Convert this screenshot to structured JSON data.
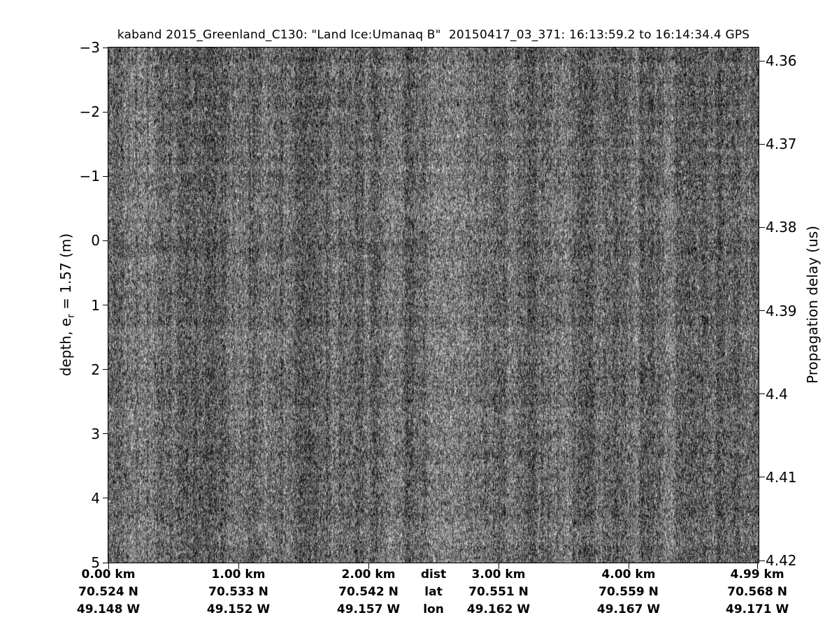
{
  "title": "kaband 2015_Greenland_C130: \"Land Ice:Umanaq B\"  20150417_03_371: 16:13:59.2 to 16:14:34.4 GPS",
  "left_axis": {
    "label_pre": "depth, e",
    "label_sub": "r",
    "label_post": " = 1.57 (m)",
    "ticks": [
      "−3",
      "−2",
      "−1",
      "0",
      "1",
      "2",
      "3",
      "4",
      "5"
    ]
  },
  "right_axis": {
    "label": "Propagation delay (us)",
    "ticks": [
      "4.36",
      "4.37",
      "4.38",
      "4.39",
      "4.4",
      "4.41",
      "4.42"
    ]
  },
  "bottom_axis": {
    "header": {
      "dist": "dist",
      "lat": "lat",
      "lon": "lon",
      "km": 2.5
    },
    "columns": [
      {
        "km": 0.0,
        "dist": "0.00 km",
        "lat": "70.524 N",
        "lon": "49.148 W"
      },
      {
        "km": 1.0,
        "dist": "1.00 km",
        "lat": "70.533 N",
        "lon": "49.152 W"
      },
      {
        "km": 2.0,
        "dist": "2.00 km",
        "lat": "70.542 N",
        "lon": "49.157 W"
      },
      {
        "km": 3.0,
        "dist": "3.00 km",
        "lat": "70.551 N",
        "lon": "49.162 W"
      },
      {
        "km": 4.0,
        "dist": "4.00 km",
        "lat": "70.559 N",
        "lon": "49.167 W"
      },
      {
        "km": 4.99,
        "dist": "4.99 km",
        "lat": "70.568 N",
        "lon": "49.171 W"
      }
    ]
  },
  "chart_data": {
    "type": "heatmap",
    "title": "kaband 2015_Greenland_C130: \"Land Ice:Umanaq B\"  20150417_03_371: 16:13:59.2 to 16:14:34.4 GPS",
    "x": {
      "label_rows": [
        "dist",
        "lat",
        "lon"
      ],
      "dist_km": [
        0.0,
        1.0,
        2.0,
        3.0,
        4.0,
        4.99
      ],
      "lat_deg_N": [
        70.524,
        70.533,
        70.542,
        70.551,
        70.559,
        70.568
      ],
      "lon_deg_W": [
        49.148,
        49.152,
        49.157,
        49.162,
        49.167,
        49.171
      ],
      "range_km": [
        0.0,
        4.99
      ]
    },
    "y_left": {
      "label": "depth, e_r = 1.57 (m)",
      "ticks": [
        -3,
        -2,
        -1,
        0,
        1,
        2,
        3,
        4,
        5
      ],
      "range": [
        -3,
        5
      ]
    },
    "y_right": {
      "label": "Propagation delay (us)",
      "ticks": [
        4.36,
        4.37,
        4.38,
        4.39,
        4.4,
        4.41,
        4.42
      ],
      "range": [
        4.358,
        4.42
      ]
    },
    "colormap": "gray",
    "legend": "none",
    "grid": "off",
    "content": "uniform grayscale speckle noise with slight vertical streaking and occasional thin dark vertical artifact lines; no coherent subsurface layers visible"
  }
}
